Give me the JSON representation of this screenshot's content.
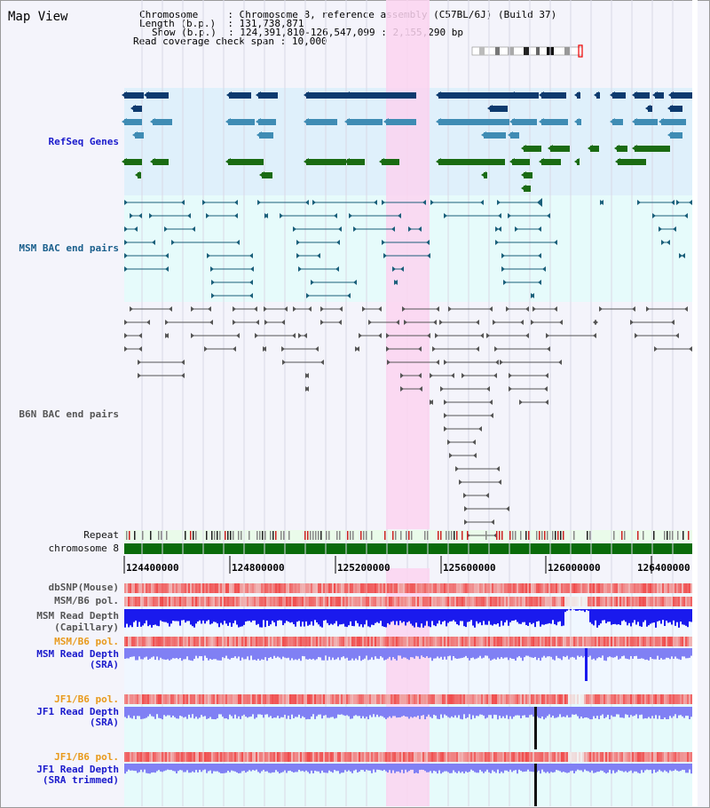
{
  "page": {
    "title": "Map View"
  },
  "header": {
    "chromosome_key": "Chromosome",
    "chromosome_value": "Chromosome 8, reference assembly (C57BL/6J) (Build 37)",
    "length_key": "Length (b.p.)",
    "length_value": "131,738,871",
    "show_key": "Show (b.p.)",
    "show_value": "124,391,810-126,547,099 : 2,155,290 bp",
    "coverage_key": "Read coverage check span",
    "coverage_value": "10,000",
    "sep": ":"
  },
  "tracks": {
    "refseq": "RefSeq Genes",
    "msm_bac": "MSM BAC end pairs",
    "b6n_bac": "B6N BAC end pairs",
    "repeat": "Repeat",
    "chromosome": "chromosome 8",
    "dbsnp": "dbSNP(Mouse)",
    "msm_b6_pol_1": "MSM/B6 pol.",
    "msm_depth_cap_1": "MSM Read Depth",
    "msm_depth_cap_2": "(Capillary)",
    "msm_b6_pol_2": "MSM/B6 pol.",
    "msm_depth_sra_1": "MSM Read Depth",
    "msm_depth_sra_2": "(SRA)",
    "jf1_pol_1": "JF1/B6 pol.",
    "jf1_depth_sra_1": "JF1 Read Depth",
    "jf1_depth_sra_2": "(SRA)",
    "jf1_pol_2": "JF1/B6 pol.",
    "jf1_depth_trim_1": "JF1 Read Depth",
    "jf1_depth_trim_2": "(SRA trimmed)"
  },
  "ruler": {
    "ticks": [
      "124400000",
      "124800000",
      "125200000",
      "125600000",
      "126000000",
      "126400000"
    ]
  },
  "colors": {
    "highlight": "#fbd3f0",
    "refseq_bg": "#dff0fb",
    "msm_bg": "#e6fbfb",
    "gene_dark": "#0d3a6e",
    "gene_mid": "#3f8cb4",
    "gene_green": "#1a6b12",
    "bac_teal": "#1a5f7a",
    "bac_gray": "#555555",
    "chrom_bar": "#0a6b0a",
    "depth_blue": "#1a1aee",
    "depth_light": "#8080f4"
  }
}
